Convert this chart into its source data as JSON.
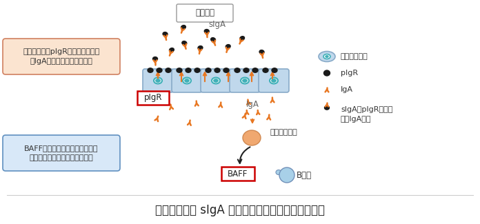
{
  "title": "図１　腸管内 sIgA 抗体量を維持するためのしくみ",
  "title_fontsize": 12,
  "bg_color": "#ffffff",
  "intestine_label": "腸管内部",
  "sIgA_label": "sIgA",
  "IgA_label": "IgA",
  "pIgR_label": "pIgR",
  "BAFF_label": "BAFF",
  "Bcell_label": "B細胞",
  "antibody_cell_label": "抗体産生細胞",
  "legend_cell_label": "腸管上皮細胞",
  "legend_pIgR_label": "pIgR",
  "legend_IgA_label": "IgA",
  "legend_sIgA_label": "sIgA：pIgRと結合\nしたIgA抗体",
  "box1_text": "運び屋分子（pIgR）を増やすこと\nでIgA抗体の輸送力を上げる",
  "box2_text": "BAFFを介して、抗体産生細胞を\n活性化し、抗体産生力を増やす",
  "orange": "#E87722",
  "dark_orange": "#cc5500",
  "black": "#1a1a1a",
  "lightblue": "#a8d0e8",
  "cyan_dot": "#40b0b8",
  "box1_bg": "#fbe4d0",
  "box2_bg": "#d8e8f8",
  "cell_bg": "#c0d8ec",
  "cell_border": "#88aac8",
  "ab_cell_color": "#f0a870",
  "ab_cell_border": "#d08850"
}
